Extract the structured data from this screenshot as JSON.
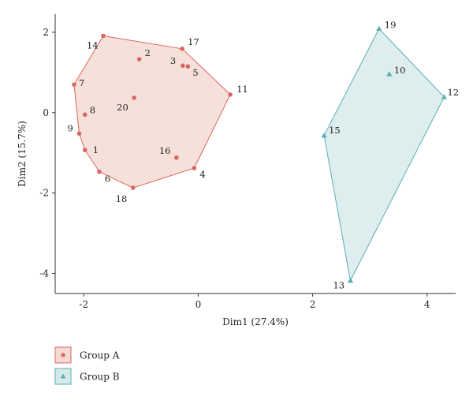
{
  "chart_data": {
    "type": "scatter",
    "xlabel": "Dim1 (27.4%)",
    "ylabel": "Dim2 (15.7%)",
    "xlim": [
      -2.5,
      4.5
    ],
    "ylim": [
      -4.5,
      2.45
    ],
    "xticks": [
      -2,
      0,
      2,
      4
    ],
    "yticks": [
      2,
      0,
      -2,
      -4
    ],
    "grid": false,
    "legend_position": "bottom-left",
    "series": [
      {
        "name": "Group A",
        "marker": "circle",
        "color": "#d9665f",
        "fill": "#f3d9d1",
        "points": [
          {
            "label": "1",
            "x": -1.98,
            "y": -0.93
          },
          {
            "label": "2",
            "x": -1.03,
            "y": 1.33
          },
          {
            "label": "3",
            "x": -0.27,
            "y": 1.17
          },
          {
            "label": "4",
            "x": -0.07,
            "y": -1.38
          },
          {
            "label": "5",
            "x": -0.18,
            "y": 1.15
          },
          {
            "label": "6",
            "x": -1.73,
            "y": -1.47
          },
          {
            "label": "7",
            "x": -2.17,
            "y": 0.7
          },
          {
            "label": "8",
            "x": -1.98,
            "y": -0.05
          },
          {
            "label": "9",
            "x": -2.08,
            "y": -0.52
          },
          {
            "label": "11",
            "x": 0.56,
            "y": 0.45
          },
          {
            "label": "14",
            "x": -1.66,
            "y": 1.91
          },
          {
            "label": "16",
            "x": -0.38,
            "y": -1.12
          },
          {
            "label": "17",
            "x": -0.28,
            "y": 1.59
          },
          {
            "label": "18",
            "x": -1.14,
            "y": -1.87
          },
          {
            "label": "20",
            "x": -1.12,
            "y": 0.37
          }
        ],
        "hull": [
          "14",
          "17",
          "11",
          "4",
          "18",
          "6",
          "1",
          "9",
          "7"
        ]
      },
      {
        "name": "Group B",
        "marker": "triangle",
        "color": "#5aadb5",
        "fill": "#d6e9e8",
        "points": [
          {
            "label": "10",
            "x": 3.34,
            "y": 0.96
          },
          {
            "label": "12",
            "x": 4.3,
            "y": 0.39
          },
          {
            "label": "13",
            "x": 2.66,
            "y": -4.18
          },
          {
            "label": "15",
            "x": 2.2,
            "y": -0.57
          },
          {
            "label": "19",
            "x": 3.16,
            "y": 2.09
          }
        ],
        "hull": [
          "19",
          "12",
          "13",
          "15"
        ]
      }
    ]
  }
}
